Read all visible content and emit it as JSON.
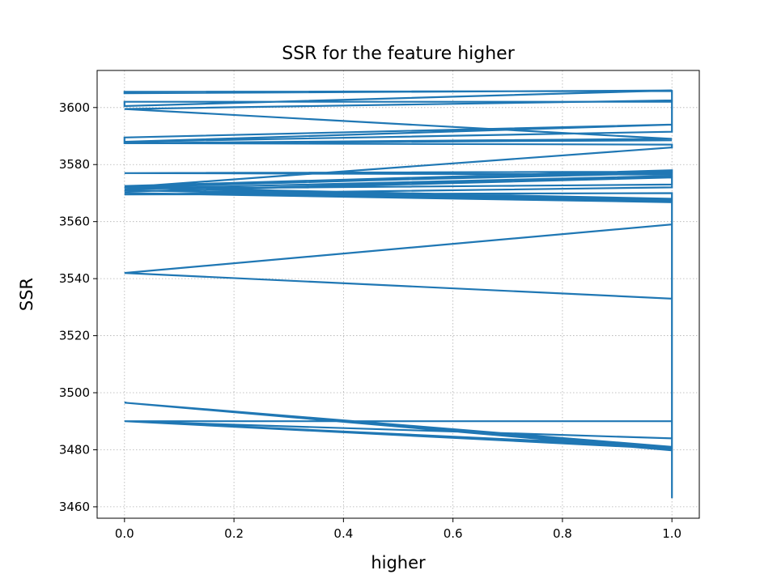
{
  "chart_data": {
    "type": "line",
    "title": "SSR for the feature higher",
    "xlabel": "higher",
    "ylabel": "SSR",
    "xlim": [
      -0.05,
      1.05
    ],
    "ylim": [
      3456,
      3613
    ],
    "xticks": [
      0.0,
      0.2,
      0.4,
      0.6,
      0.8,
      1.0
    ],
    "xtick_labels": [
      "0.0",
      "0.2",
      "0.4",
      "0.6",
      "0.8",
      "1.0"
    ],
    "yticks": [
      3460,
      3480,
      3500,
      3520,
      3540,
      3560,
      3580,
      3600
    ],
    "ytick_labels": [
      "3460",
      "3480",
      "3500",
      "3520",
      "3540",
      "3560",
      "3580",
      "3600"
    ],
    "grid": true,
    "grid_style": "dotted",
    "legend": "none",
    "series": [
      {
        "color": "#1f77b4",
        "x": [
          1,
          1,
          1,
          0,
          1,
          1,
          0,
          1,
          1,
          0,
          1,
          1,
          0,
          1,
          1,
          1,
          0,
          1,
          1,
          1,
          0,
          1,
          1,
          0,
          1,
          0,
          1,
          1,
          0,
          1,
          1,
          1,
          0,
          1,
          0,
          1,
          1,
          0,
          1,
          1,
          1,
          0,
          1,
          0,
          1,
          1,
          1,
          0,
          0,
          1,
          0,
          1,
          1,
          0,
          0,
          1
        ],
        "y": [
          3463,
          3479.5,
          3480.5,
          3496.5,
          3480,
          3481,
          3496.5,
          3479.8,
          3480.3,
          3490,
          3490,
          3484,
          3490,
          3481,
          3533,
          3559,
          3542,
          3533,
          3566.5,
          3567.5,
          3570,
          3566.8,
          3568,
          3571,
          3567,
          3572,
          3568,
          3570,
          3569.5,
          3572,
          3574,
          3575.5,
          3570.5,
          3576,
          3571.5,
          3573,
          3577,
          3572.5,
          3578,
          3577.5,
          3576.5,
          3577,
          3577.5,
          3572,
          3586,
          3586.5,
          3587,
          3587.5,
          3589.5,
          3594,
          3588,
          3591.5,
          3602,
          3602,
          3600.5,
          3606
        ]
      },
      {
        "color": "#1f77b4",
        "x": [
          1,
          0,
          0,
          1,
          1,
          0,
          1,
          0,
          1
        ],
        "y": [
          3606,
          3605,
          3605.5,
          3605.8,
          3602.5,
          3599.5,
          3589,
          3587.5,
          3588.5
        ]
      }
    ]
  }
}
